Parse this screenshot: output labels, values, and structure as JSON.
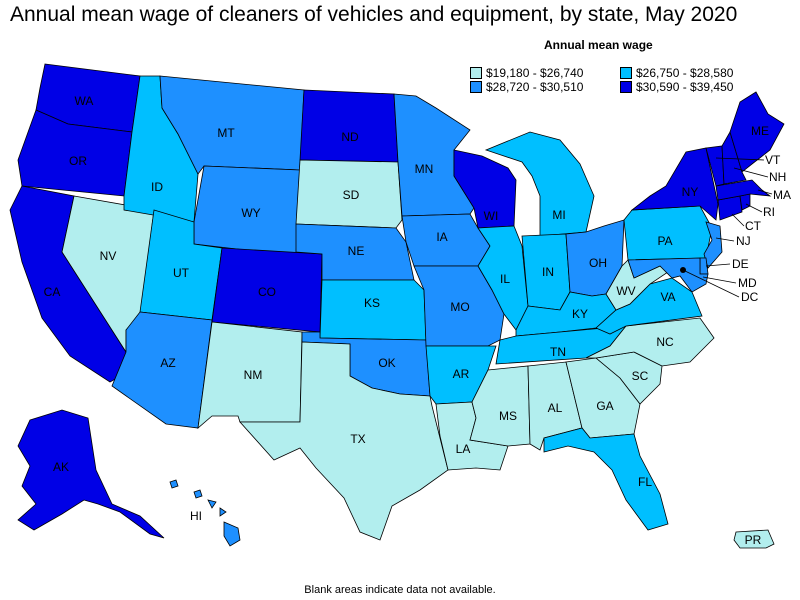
{
  "title": "Annual mean wage of cleaners of vehicles and equipment, by state, May 2020",
  "legend": {
    "title": "Annual mean wage",
    "items": [
      {
        "label": "$19,180 - $26,740",
        "color": "#b2eeee"
      },
      {
        "label": "$26,750 - $28,580",
        "color": "#00bfff"
      },
      {
        "label": "$28,720 - $30,510",
        "color": "#1e90ff"
      },
      {
        "label": "$30,590 - $39,450",
        "color": "#0000e6"
      }
    ]
  },
  "footnote": "Blank areas indicate data not available.",
  "states": [
    {
      "abbr": "WA",
      "tier": 3
    },
    {
      "abbr": "OR",
      "tier": 3
    },
    {
      "abbr": "CA",
      "tier": 3
    },
    {
      "abbr": "NV",
      "tier": 0
    },
    {
      "abbr": "ID",
      "tier": 1
    },
    {
      "abbr": "MT",
      "tier": 2
    },
    {
      "abbr": "WY",
      "tier": 2
    },
    {
      "abbr": "UT",
      "tier": 1
    },
    {
      "abbr": "AZ",
      "tier": 2
    },
    {
      "abbr": "CO",
      "tier": 3
    },
    {
      "abbr": "NM",
      "tier": 0
    },
    {
      "abbr": "ND",
      "tier": 3
    },
    {
      "abbr": "SD",
      "tier": 0
    },
    {
      "abbr": "NE",
      "tier": 2
    },
    {
      "abbr": "KS",
      "tier": 1
    },
    {
      "abbr": "OK",
      "tier": 2
    },
    {
      "abbr": "TX",
      "tier": 0
    },
    {
      "abbr": "MN",
      "tier": 2
    },
    {
      "abbr": "IA",
      "tier": 2
    },
    {
      "abbr": "MO",
      "tier": 2
    },
    {
      "abbr": "AR",
      "tier": 1
    },
    {
      "abbr": "LA",
      "tier": 0
    },
    {
      "abbr": "WI",
      "tier": 3
    },
    {
      "abbr": "IL",
      "tier": 1
    },
    {
      "abbr": "MI",
      "tier": 1
    },
    {
      "abbr": "IN",
      "tier": 1
    },
    {
      "abbr": "OH",
      "tier": 2
    },
    {
      "abbr": "KY",
      "tier": 1
    },
    {
      "abbr": "TN",
      "tier": 1
    },
    {
      "abbr": "MS",
      "tier": 0
    },
    {
      "abbr": "AL",
      "tier": 0
    },
    {
      "abbr": "GA",
      "tier": 0
    },
    {
      "abbr": "FL",
      "tier": 1
    },
    {
      "abbr": "SC",
      "tier": 0
    },
    {
      "abbr": "NC",
      "tier": 0
    },
    {
      "abbr": "VA",
      "tier": 1
    },
    {
      "abbr": "WV",
      "tier": 0
    },
    {
      "abbr": "PA",
      "tier": 1
    },
    {
      "abbr": "NY",
      "tier": 3
    },
    {
      "abbr": "NJ",
      "tier": 2
    },
    {
      "abbr": "DE",
      "tier": 2
    },
    {
      "abbr": "MD",
      "tier": 2
    },
    {
      "abbr": "DC",
      "tier": 3
    },
    {
      "abbr": "CT",
      "tier": 3
    },
    {
      "abbr": "RI",
      "tier": 3
    },
    {
      "abbr": "MA",
      "tier": 3
    },
    {
      "abbr": "VT",
      "tier": 3
    },
    {
      "abbr": "NH",
      "tier": 3
    },
    {
      "abbr": "ME",
      "tier": 3
    },
    {
      "abbr": "AK",
      "tier": 3
    },
    {
      "abbr": "HI",
      "tier": 2
    },
    {
      "abbr": "PR",
      "tier": 0
    }
  ]
}
